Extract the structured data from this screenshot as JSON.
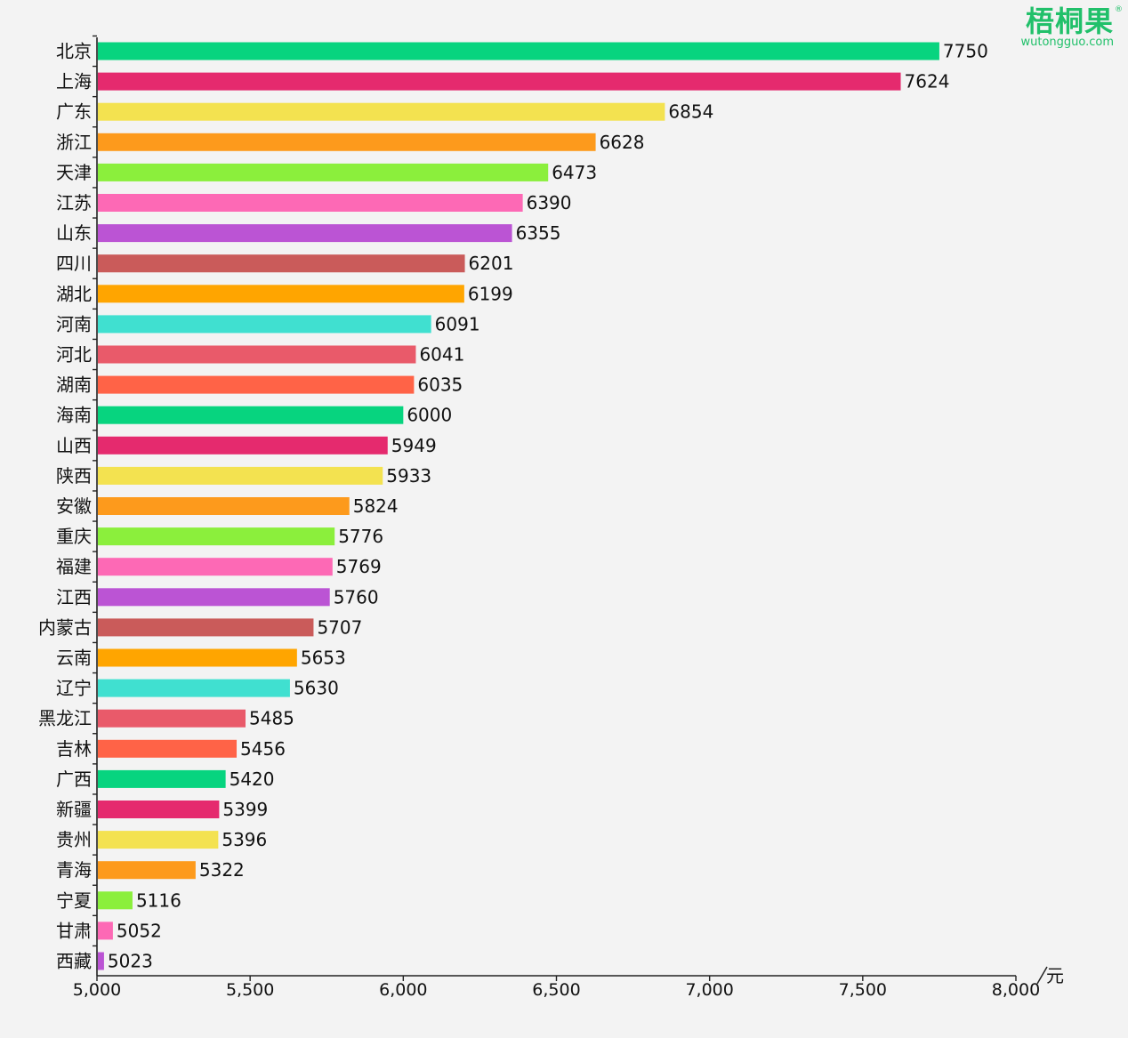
{
  "brand": {
    "name": "梧桐果",
    "site": "wutongguo.com",
    "reg": "®"
  },
  "chart_data": {
    "type": "bar",
    "orientation": "horizontal",
    "title": "",
    "xlabel": "元",
    "ylabel": "",
    "xlim": [
      5000,
      8000
    ],
    "xticks": [
      5000,
      5500,
      6000,
      6500,
      7000,
      7500,
      8000
    ],
    "xtick_labels": [
      "5,000",
      "5,500",
      "6,000",
      "6,500",
      "7,000",
      "7,500",
      "8,000"
    ],
    "grid": false,
    "categories": [
      "北京",
      "上海",
      "广东",
      "浙江",
      "天津",
      "江苏",
      "山东",
      "四川",
      "湖北",
      "河南",
      "河北",
      "湖南",
      "海南",
      "山西",
      "陕西",
      "安徽",
      "重庆",
      "福建",
      "江西",
      "内蒙古",
      "云南",
      "辽宁",
      "黑龙江",
      "吉林",
      "广西",
      "新疆",
      "贵州",
      "青海",
      "宁夏",
      "甘肃",
      "西藏"
    ],
    "values": [
      7750,
      7624,
      6854,
      6628,
      6473,
      6390,
      6355,
      6201,
      6199,
      6091,
      6041,
      6035,
      6000,
      5949,
      5933,
      5824,
      5776,
      5769,
      5760,
      5707,
      5653,
      5630,
      5485,
      5456,
      5420,
      5399,
      5396,
      5322,
      5116,
      5052,
      5023
    ],
    "data_labels": [
      "7750",
      "7624",
      "6854",
      "6628",
      "6473",
      "6390",
      "6355",
      "6201",
      "6199",
      "6091",
      "6041",
      "6035",
      "6000",
      "5949",
      "5933",
      "5824",
      "5776",
      "5769",
      "5760",
      "5707",
      "5653",
      "5630",
      "5485",
      "5456",
      "5420",
      "5399",
      "5396",
      "5322",
      "5116",
      "5052",
      "5023"
    ],
    "colors": [
      "#07d47f",
      "#e52a6e",
      "#f3e250",
      "#fd9a1c",
      "#8bef3c",
      "#fd69b5",
      "#bb54d4",
      "#ca5b5a",
      "#ffa500",
      "#40e0d0",
      "#e95a6a",
      "#ff6347"
    ]
  }
}
